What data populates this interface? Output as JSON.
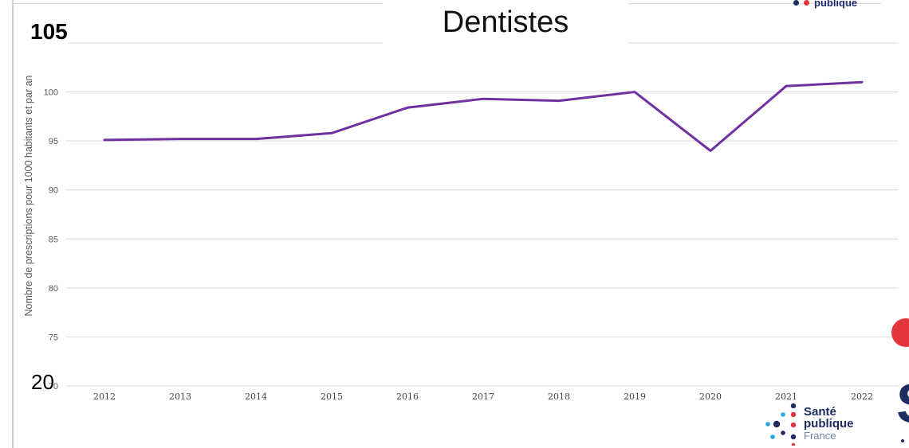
{
  "header": {
    "title": "Dentistes",
    "top_overlay_value": "105",
    "bottom_overlay_value": "20",
    "top_logo_fragment": "publique"
  },
  "logo": {
    "line1": "Santé",
    "line2": "publique",
    "line3": "France"
  },
  "colors": {
    "series": "#7030a0",
    "grid": "#d9d9d9",
    "axis_text": "#595959",
    "logo_navy": "#1d2d62",
    "logo_red": "#e4343c",
    "logo_blue": "#2ba6de"
  },
  "chart_data": {
    "type": "line",
    "title": "Dentistes",
    "xlabel": "",
    "ylabel": "Nombre de prescriptions pour 1000 habitants et par  an",
    "x": [
      "2012",
      "2013",
      "2014",
      "2015",
      "2016",
      "2017",
      "2018",
      "2019",
      "2020",
      "2021",
      "2022"
    ],
    "series": [
      {
        "values": [
          95.1,
          95.2,
          95.2,
          95.8,
          98.4,
          99.3,
          99.1,
          100.0,
          94.0,
          100.6,
          101.0
        ]
      }
    ],
    "ylim": [
      70,
      105
    ],
    "yticks": [
      70,
      75,
      80,
      85,
      90,
      95,
      100,
      105
    ],
    "grid": true,
    "legend": "none"
  }
}
